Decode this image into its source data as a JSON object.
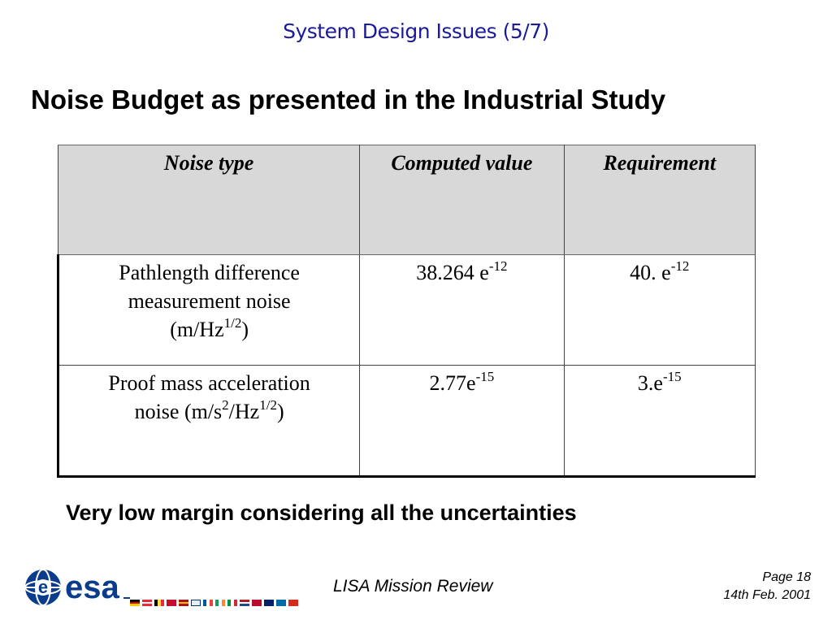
{
  "header": {
    "title": "System Design Issues (5/7)"
  },
  "heading": "Noise Budget as presented in the Industrial Study",
  "table": {
    "headers": [
      "Noise type",
      "Computed value",
      "Requirement"
    ],
    "rows": [
      {
        "noise_type": {
          "line1": "Pathlength difference",
          "line2": "measurement noise",
          "unit_prefix": "(m/Hz",
          "unit_sup": "1/2",
          "unit_suffix": ")"
        },
        "computed": {
          "base": "38.264 e",
          "exp": "-12"
        },
        "requirement": {
          "base": "40. e",
          "exp": "-12"
        }
      },
      {
        "noise_type": {
          "line1": "Proof mass acceleration",
          "line2_prefix": "noise (m/s",
          "line2_sup1": "2",
          "line2_mid": "/Hz",
          "line2_sup2": "1/2",
          "line2_suffix": ")"
        },
        "computed": {
          "base": "2.77e",
          "exp": "-15"
        },
        "requirement": {
          "base": "3.e",
          "exp": "-15"
        }
      }
    ]
  },
  "note": "Very low margin considering all the uncertainties",
  "footer": {
    "logo_text": "esa",
    "center": "LISA Mission Review",
    "page": "Page 18",
    "date": "14th Feb. 2001"
  },
  "colors": {
    "title_blue": "#1b1b9a",
    "esa_blue": "#0b3c8c",
    "header_fill": "#d8d8d8"
  }
}
